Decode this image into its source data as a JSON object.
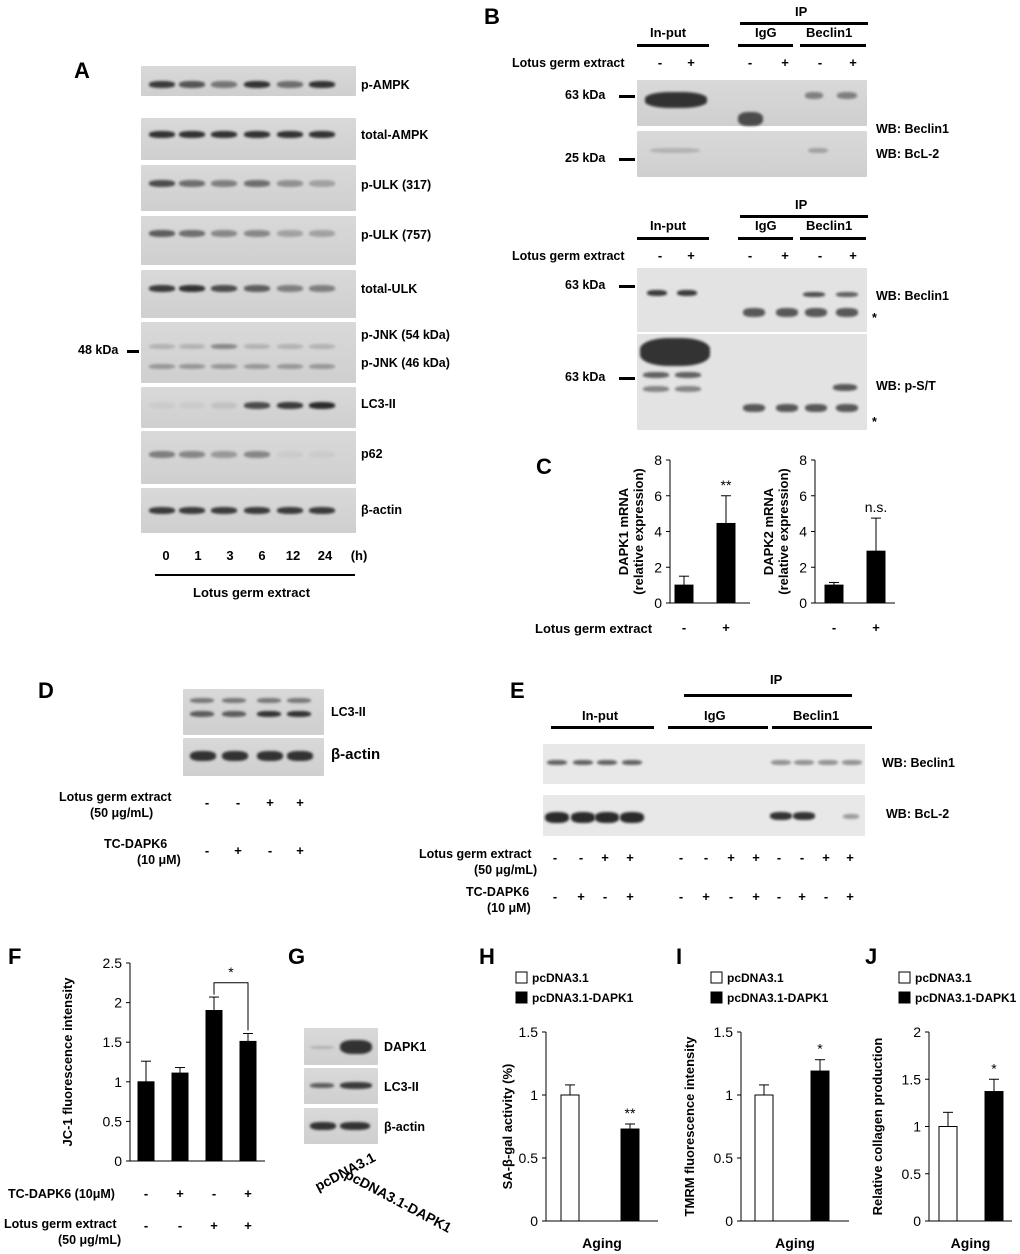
{
  "panels": {
    "A": {
      "letter": "A",
      "blots": [
        "p-AMPK",
        "total-AMPK",
        "p-ULK (317)",
        "p-ULK (757)",
        "total-ULK",
        "p-JNK (54 kDa)",
        "p-JNK (46 kDa)",
        "LC3-II",
        "p62",
        "β-actin"
      ],
      "marker": "48 kDa",
      "timepoints": [
        "0",
        "1",
        "3",
        "6",
        "12",
        "24",
        "(h)"
      ],
      "treatment": "Lotus germ extract"
    },
    "B": {
      "letter": "B",
      "inputs": "In-put",
      "ip": "IP",
      "igg": "IgG",
      "beclin": "Beclin1",
      "treatment": "Lotus germ extract",
      "signs": [
        "-",
        "+",
        "-",
        "+",
        "-",
        "+"
      ],
      "marker63": "63 kDa",
      "marker25": "25 kDa",
      "wb_beclin": "WB: Beclin1",
      "wb_bcl2": "WB: BcL-2",
      "wb_pst": "WB: p-S/T",
      "star": "*"
    },
    "C": {
      "letter": "C",
      "treatment": "Lotus germ extract",
      "signs": [
        "-",
        "+"
      ]
    },
    "D": {
      "letter": "D",
      "blots": [
        "LC3-II",
        "β-actin"
      ],
      "row1": "Lotus germ extract",
      "row1b": "(50 μg/mL)",
      "row2": "TC-DAPK6",
      "row2b": "(10 μM)",
      "row1_signs": [
        "-",
        "-",
        "+",
        "+"
      ],
      "row2_signs": [
        "-",
        "+",
        "-",
        "+"
      ]
    },
    "E": {
      "letter": "E",
      "ip": "IP",
      "inputs": "In-put",
      "igg": "IgG",
      "beclin": "Beclin1",
      "wb_beclin": "WB: Beclin1",
      "wb_bcl2": "WB: BcL-2",
      "row1": "Lotus germ extract",
      "row1b": "(50 μg/mL)",
      "row2": "TC-DAPK6",
      "row2b": "(10 μM)",
      "row1_signs": [
        "-",
        "-",
        "+",
        "+",
        "-",
        "-",
        "+",
        "+",
        "-",
        "-",
        "+",
        "+"
      ],
      "row2_signs": [
        "-",
        "+",
        "-",
        "+",
        "-",
        "+",
        "-",
        "+",
        "-",
        "+",
        "-",
        "+"
      ]
    },
    "F": {
      "letter": "F",
      "row1": "TC-DAPK6 (10μM)",
      "row2": "Lotus germ extract",
      "row2b": "(50 μg/mL)",
      "row1_signs": [
        "-",
        "+",
        "-",
        "+"
      ],
      "row2_signs": [
        "-",
        "-",
        "+",
        "+"
      ]
    },
    "G": {
      "letter": "G",
      "blots": [
        "DAPK1",
        "LC3-II",
        "β-actin"
      ],
      "lanes": [
        "pcDNA3.1",
        "pcDNA3.1-DAPK1"
      ]
    },
    "H": {
      "letter": "H"
    },
    "I": {
      "letter": "I"
    },
    "J": {
      "letter": "J"
    }
  },
  "chart_data": [
    {
      "id": "C-left",
      "type": "bar",
      "categories": [
        "-",
        "+"
      ],
      "values": [
        1.0,
        4.45
      ],
      "errors": [
        0.5,
        1.55
      ],
      "ylabel": "DAPK1 mRNA (relative expression)",
      "ylim": [
        0,
        8
      ],
      "yticks": [
        0,
        2,
        4,
        6,
        8
      ],
      "annotations": [
        "",
        "**"
      ],
      "colors": [
        "#000000",
        "#000000"
      ]
    },
    {
      "id": "C-right",
      "type": "bar",
      "categories": [
        "-",
        "+"
      ],
      "values": [
        1.0,
        2.9
      ],
      "errors": [
        0.15,
        1.85
      ],
      "ylabel": "DAPK2 mRNA (relative expression)",
      "ylim": [
        0,
        8
      ],
      "yticks": [
        0,
        2,
        4,
        6,
        8
      ],
      "annotations": [
        "",
        "n.s."
      ],
      "colors": [
        "#000000",
        "#000000"
      ]
    },
    {
      "id": "F",
      "type": "bar",
      "categories": [
        "1",
        "2",
        "3",
        "4"
      ],
      "values": [
        1.0,
        1.11,
        1.9,
        1.51
      ],
      "errors": [
        0.26,
        0.07,
        0.17,
        0.1
      ],
      "ylabel": "JC-1 fluorescence intensity",
      "ylim": [
        0,
        2.5
      ],
      "yticks": [
        "0",
        "0.5",
        "1",
        "1.5",
        "2",
        "2.5"
      ],
      "significance": {
        "between": [
          2,
          3
        ],
        "label": "*"
      },
      "colors": [
        "#000000",
        "#000000",
        "#000000",
        "#000000"
      ]
    },
    {
      "id": "H",
      "type": "bar",
      "categories": [
        "pcDNA3.1",
        "pcDNA3.1-DAPK1"
      ],
      "values": [
        1.0,
        0.73
      ],
      "errors": [
        0.08,
        0.04
      ],
      "xlabel": "Aging",
      "ylabel": "SA-β-gal activity (%)",
      "ylim": [
        0,
        1.5
      ],
      "yticks": [
        "0",
        "0.5",
        "1",
        "1.5"
      ],
      "annotations": [
        "",
        "**"
      ],
      "legend": [
        "pcDNA3.1",
        "pcDNA3.1-DAPK1"
      ],
      "colors": [
        "#ffffff",
        "#000000"
      ]
    },
    {
      "id": "I",
      "type": "bar",
      "categories": [
        "pcDNA3.1",
        "pcDNA3.1-DAPK1"
      ],
      "values": [
        1.0,
        1.19
      ],
      "errors": [
        0.08,
        0.09
      ],
      "xlabel": "Aging",
      "ylabel": "TMRM fluorescence intensity",
      "ylim": [
        0,
        1.5
      ],
      "yticks": [
        "0",
        "0.5",
        "1",
        "1.5"
      ],
      "annotations": [
        "",
        "*"
      ],
      "legend": [
        "pcDNA3.1",
        "pcDNA3.1-DAPK1"
      ],
      "colors": [
        "#ffffff",
        "#000000"
      ]
    },
    {
      "id": "J",
      "type": "bar",
      "categories": [
        "pcDNA3.1",
        "pcDNA3.1-DAPK1"
      ],
      "values": [
        1.0,
        1.37
      ],
      "errors": [
        0.15,
        0.13
      ],
      "xlabel": "Aging",
      "ylabel": "Relative collagen production",
      "ylim": [
        0,
        2
      ],
      "yticks": [
        "0",
        "0.5",
        "1",
        "1.5",
        "2"
      ],
      "annotations": [
        "",
        "*"
      ],
      "legend": [
        "pcDNA3.1",
        "pcDNA3.1-DAPK1"
      ],
      "colors": [
        "#ffffff",
        "#000000"
      ]
    }
  ]
}
